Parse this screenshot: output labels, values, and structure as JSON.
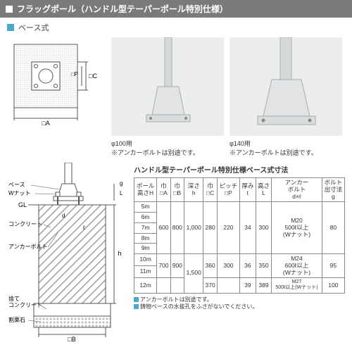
{
  "title": "フラッグポール（ハンドル型テーパーポール特別仕様）",
  "subtitle": "ベース式",
  "photos": {
    "p1_caption": "φ100用",
    "p1_note": "※アンカーボルトは別途です。",
    "p2_caption": "φ140用",
    "p2_note": "※アンカーボルトは別途です。"
  },
  "dim_labels": {
    "A": "□A",
    "C": "□C",
    "P": "□P"
  },
  "section_labels": {
    "base": "ベース",
    "wnut": "Wナット",
    "gl": "GL",
    "concrete": "コンクリート",
    "anchor": "アンカーボルト",
    "fill": "捨て\nコンクリート",
    "crushed": "割栗石",
    "B": "□B",
    "L": "L",
    "d": "d",
    "l_small": "ℓ",
    "g": "g",
    "h": "h"
  },
  "table": {
    "title": "ハンドル型テーパーポール特別仕様ベース式寸法",
    "headers": [
      "ポール\n高さH",
      "巾\n□A",
      "巾\n□B",
      "深さ\nh",
      "巾\n□C",
      "ピッチ\n□P",
      "厚み\nt",
      "高さ\nL",
      "アンカー\nボルト\nd×ℓ",
      "ボルト\n出寸法\ng"
    ],
    "rows": [
      {
        "h": "5m",
        "A": "600",
        "B": "800",
        "depth": "1,000",
        "C": "280",
        "P": "220",
        "t": "34",
        "L": "300",
        "bolt": "M20\n500ℓ以上\n(Wナット)",
        "g": "80",
        "span": 5
      },
      {
        "h": "6m"
      },
      {
        "h": "7m"
      },
      {
        "h": "8m"
      },
      {
        "h": "9m"
      },
      {
        "h": "10m",
        "A": "700",
        "B": "900",
        "depth": "1,500",
        "C": "360",
        "P": "300",
        "t": "36",
        "L": "350",
        "bolt": "M24\n600ℓ以上\n(Wナット)",
        "g": "95",
        "span": 2,
        "depthspan": 3
      },
      {
        "h": "11m"
      },
      {
        "h": "12m",
        "C": "370",
        "t": "39",
        "L": "389",
        "bolt": "M27\n500ℓ以上(Wナット)",
        "g": "100"
      }
    ],
    "notes": [
      "アンカーボルトは別途です。",
      "鋳物ベースの水抜孔をふさがないでください。"
    ]
  },
  "colors": {
    "titlebar": "#7a7a7a",
    "accent": "#4aa8c9",
    "border": "#888888",
    "hatch": "#9aa0a4"
  }
}
